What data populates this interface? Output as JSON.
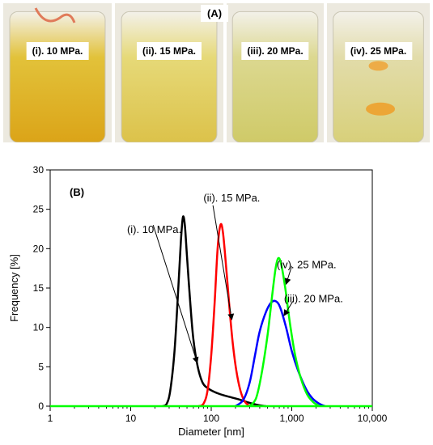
{
  "photos_panel": {
    "label": "(A)",
    "photos": [
      {
        "label": "(i). 10 MPa.",
        "color_top": "#e2c23a",
        "color_bottom": "#dba418"
      },
      {
        "label": "(ii). 15 MPa.",
        "color_top": "#e6d978",
        "color_bottom": "#dcc24a"
      },
      {
        "label": "(iii). 20 MPa.",
        "color_top": "#dcd890",
        "color_bottom": "#cfca68"
      },
      {
        "label": "(iv). 25 MPa.",
        "color_top": "#e2dcaa",
        "color_bottom": "#d8d07a"
      }
    ]
  },
  "chart_data": {
    "type": "line",
    "panel_label": "(B)",
    "xlabel": "Diameter [nm]",
    "ylabel": "Frequency [%]",
    "x_scale": "log",
    "xlim": [
      1,
      10000
    ],
    "ylim": [
      0,
      30
    ],
    "x_ticks": [
      1,
      10,
      100,
      1000,
      10000
    ],
    "x_tick_labels": [
      "1",
      "10",
      "100",
      "1,000",
      "10,000"
    ],
    "y_ticks": [
      0,
      5,
      10,
      15,
      20,
      25,
      30
    ],
    "y_tick_labels": [
      "0",
      "5",
      "10",
      "15",
      "20",
      "25",
      "30"
    ],
    "grid": false,
    "series": [
      {
        "name": "(i). 10 MPa.",
        "color": "#000000",
        "points": [
          [
            25,
            0
          ],
          [
            28,
            0.3
          ],
          [
            31,
            2
          ],
          [
            35,
            7
          ],
          [
            39,
            15
          ],
          [
            42,
            21
          ],
          [
            44.5,
            24
          ],
          [
            47,
            23
          ],
          [
            50,
            19
          ],
          [
            55,
            13
          ],
          [
            60,
            8.5
          ],
          [
            68,
            5
          ],
          [
            78,
            3
          ],
          [
            90,
            2.3
          ],
          [
            110,
            1.8
          ],
          [
            140,
            1.4
          ],
          [
            180,
            1.1
          ],
          [
            230,
            0.8
          ],
          [
            280,
            0.5
          ],
          [
            330,
            0.3
          ],
          [
            400,
            0.1
          ],
          [
            480,
            0
          ]
        ]
      },
      {
        "name": "(ii). 15 MPa.",
        "color": "#ff0000",
        "points": [
          [
            70,
            0
          ],
          [
            80,
            0.3
          ],
          [
            90,
            2
          ],
          [
            100,
            6.5
          ],
          [
            110,
            13
          ],
          [
            120,
            20
          ],
          [
            130,
            23
          ],
          [
            140,
            22
          ],
          [
            155,
            17
          ],
          [
            170,
            12
          ],
          [
            185,
            8
          ],
          [
            205,
            4.5
          ],
          [
            230,
            2
          ],
          [
            260,
            0.6
          ],
          [
            300,
            0
          ]
        ]
      },
      {
        "name": "(iii). 20 MPa.",
        "color": "#0000ff",
        "points": [
          [
            200,
            0
          ],
          [
            250,
            0.8
          ],
          [
            300,
            3
          ],
          [
            350,
            6.5
          ],
          [
            400,
            9.5
          ],
          [
            480,
            12
          ],
          [
            560,
            13.2
          ],
          [
            640,
            13.3
          ],
          [
            720,
            12.5
          ],
          [
            850,
            10
          ],
          [
            1000,
            7
          ],
          [
            1200,
            4.5
          ],
          [
            1500,
            2.2
          ],
          [
            1800,
            1
          ],
          [
            2200,
            0.3
          ],
          [
            2600,
            0
          ]
        ]
      },
      {
        "name": "(iv). 25 MPa.",
        "color": "#00ff00",
        "points": [
          [
            300,
            0
          ],
          [
            360,
            1
          ],
          [
            420,
            4
          ],
          [
            500,
            9
          ],
          [
            570,
            14
          ],
          [
            630,
            17.5
          ],
          [
            680,
            18.8
          ],
          [
            740,
            18
          ],
          [
            830,
            15
          ],
          [
            950,
            10.5
          ],
          [
            1100,
            6.5
          ],
          [
            1300,
            3.5
          ],
          [
            1550,
            1.5
          ],
          [
            1850,
            0.5
          ],
          [
            2200,
            0
          ]
        ]
      }
    ],
    "annotations": [
      {
        "text": "(i). 10 MPa.",
        "text_x": 9,
        "text_y": 22,
        "arrow_from": [
          19,
          23
        ],
        "arrow_to": [
          67,
          5.5
        ]
      },
      {
        "text": "(ii). 15 MPa.",
        "text_x": 80,
        "text_y": 26,
        "arrow_from": [
          105,
          25.5
        ],
        "arrow_to": [
          180,
          11
        ]
      },
      {
        "text": "(iv). 25 MPa.",
        "text_x": 650,
        "text_y": 17.5,
        "arrow_from": [
          1000,
          17.8
        ],
        "arrow_to": [
          850,
          15.5
        ]
      },
      {
        "text": "(iii). 20 MPa.",
        "text_x": 800,
        "text_y": 13.2,
        "arrow_from": [
          1030,
          13.3
        ],
        "arrow_to": [
          800,
          11.5
        ]
      }
    ]
  }
}
